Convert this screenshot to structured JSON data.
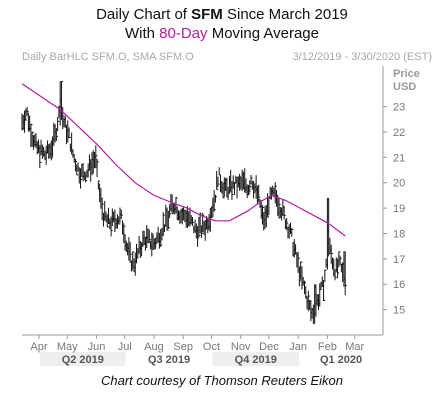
{
  "header": {
    "title_prefix": "Daily Chart of ",
    "ticker": "SFM",
    "title_suffix": " Since March 2019",
    "subtitle_prefix": "With ",
    "subtitle_highlight": "80-Day",
    "subtitle_suffix": " Moving Average"
  },
  "legend": {
    "left": "Daily BarHLC SFM.O, SMA SFM.O",
    "right": "3/12/2019 - 3/30/2020 (EST)"
  },
  "footer": "Chart courtesy of Thomson Reuters Eikon",
  "colors": {
    "price_bars": "#111111",
    "sma": "#b01fa0",
    "quarter_band": "#eeeeee"
  },
  "chart_data": {
    "type": "line",
    "ylabel": [
      "Price",
      "USD"
    ],
    "ylim": [
      14,
      24.6
    ],
    "yticks": [
      15,
      16,
      17,
      18,
      19,
      20,
      21,
      22,
      23
    ],
    "month_labels": [
      {
        "label": "Apr",
        "x": 18
      },
      {
        "label": "May",
        "x": 48
      },
      {
        "label": "Jun",
        "x": 79
      },
      {
        "label": "Jul",
        "x": 109
      },
      {
        "label": "Aug",
        "x": 140
      },
      {
        "label": "Sep",
        "x": 171
      },
      {
        "label": "Oct",
        "x": 201
      },
      {
        "label": "Nov",
        "x": 232
      },
      {
        "label": "Dec",
        "x": 262
      },
      {
        "label": "Jan",
        "x": 293
      },
      {
        "label": "Feb",
        "x": 324
      },
      {
        "label": "Mar",
        "x": 353
      }
    ],
    "quarters": [
      {
        "label": "Q2 2019",
        "start": 19,
        "end": 110
      },
      {
        "label": "Q3 2019",
        "start": 110,
        "end": 202
      },
      {
        "label": "Q4 2019",
        "start": 202,
        "end": 294
      },
      {
        "label": "Q1 2020",
        "start": 294,
        "end": 383
      }
    ],
    "x_range": [
      0,
      383
    ],
    "price_anchors": [
      [
        0,
        22.4
      ],
      [
        5,
        22.8
      ],
      [
        10,
        22.0
      ],
      [
        15,
        21.4
      ],
      [
        20,
        21.2
      ],
      [
        25,
        21.1
      ],
      [
        30,
        21.3
      ],
      [
        35,
        21.8
      ],
      [
        38,
        22.5
      ],
      [
        40,
        22.8
      ],
      [
        43,
        22.6
      ],
      [
        46,
        22.2
      ],
      [
        50,
        21.8
      ],
      [
        55,
        21.0
      ],
      [
        60,
        20.5
      ],
      [
        65,
        20.3
      ],
      [
        70,
        20.5
      ],
      [
        75,
        20.8
      ],
      [
        78,
        21.0
      ],
      [
        80,
        20.2
      ],
      [
        83,
        19.4
      ],
      [
        86,
        18.8
      ],
      [
        90,
        18.5
      ],
      [
        95,
        18.4
      ],
      [
        100,
        18.6
      ],
      [
        105,
        18.6
      ],
      [
        108,
        18.2
      ],
      [
        111,
        17.5
      ],
      [
        115,
        17.0
      ],
      [
        118,
        16.8
      ],
      [
        122,
        17.1
      ],
      [
        126,
        17.5
      ],
      [
        130,
        17.8
      ],
      [
        135,
        17.7
      ],
      [
        140,
        17.6
      ],
      [
        145,
        17.9
      ],
      [
        150,
        18.3
      ],
      [
        155,
        18.6
      ],
      [
        158,
        19.0
      ],
      [
        162,
        19.2
      ],
      [
        166,
        18.9
      ],
      [
        170,
        18.7
      ],
      [
        175,
        18.7
      ],
      [
        180,
        18.4
      ],
      [
        185,
        18.1
      ],
      [
        190,
        18.2
      ],
      [
        195,
        18.3
      ],
      [
        200,
        18.8
      ],
      [
        205,
        19.5
      ],
      [
        208,
        20.3
      ],
      [
        212,
        20.0
      ],
      [
        216,
        19.7
      ],
      [
        220,
        19.8
      ],
      [
        225,
        19.9
      ],
      [
        230,
        19.9
      ],
      [
        235,
        20.0
      ],
      [
        240,
        19.8
      ],
      [
        243,
        20.2
      ],
      [
        247,
        19.8
      ],
      [
        252,
        19.3
      ],
      [
        255,
        18.6
      ],
      [
        258,
        18.5
      ],
      [
        262,
        19.3
      ],
      [
        266,
        19.5
      ],
      [
        270,
        19.4
      ],
      [
        275,
        19.0
      ],
      [
        280,
        18.5
      ],
      [
        285,
        18.0
      ],
      [
        290,
        17.2
      ],
      [
        295,
        16.4
      ],
      [
        300,
        15.8
      ],
      [
        304,
        15.2
      ],
      [
        308,
        14.8
      ],
      [
        312,
        15.2
      ],
      [
        316,
        15.6
      ],
      [
        320,
        16.0
      ],
      [
        323,
        16.8
      ],
      [
        326,
        17.5
      ],
      [
        329,
        17.0
      ],
      [
        333,
        16.5
      ],
      [
        337,
        16.8
      ],
      [
        340,
        16.4
      ],
      [
        343,
        16.2
      ]
    ],
    "price_spikes": [
      {
        "x": 41,
        "high": 24.0
      },
      {
        "x": 311,
        "high": 16.0
      },
      {
        "x": 325,
        "high": 19.4
      },
      {
        "x": 342,
        "high": 17.3
      }
    ],
    "sma_anchors": [
      [
        0,
        23.9
      ],
      [
        20,
        23.4
      ],
      [
        40,
        22.9
      ],
      [
        60,
        22.2
      ],
      [
        80,
        21.5
      ],
      [
        100,
        20.7
      ],
      [
        120,
        20.0
      ],
      [
        140,
        19.5
      ],
      [
        160,
        19.2
      ],
      [
        175,
        19.0
      ],
      [
        190,
        18.7
      ],
      [
        205,
        18.5
      ],
      [
        220,
        18.5
      ],
      [
        240,
        18.9
      ],
      [
        255,
        19.3
      ],
      [
        265,
        19.5
      ],
      [
        280,
        19.3
      ],
      [
        295,
        19.0
      ],
      [
        310,
        18.7
      ],
      [
        325,
        18.4
      ],
      [
        343,
        17.9
      ]
    ]
  }
}
